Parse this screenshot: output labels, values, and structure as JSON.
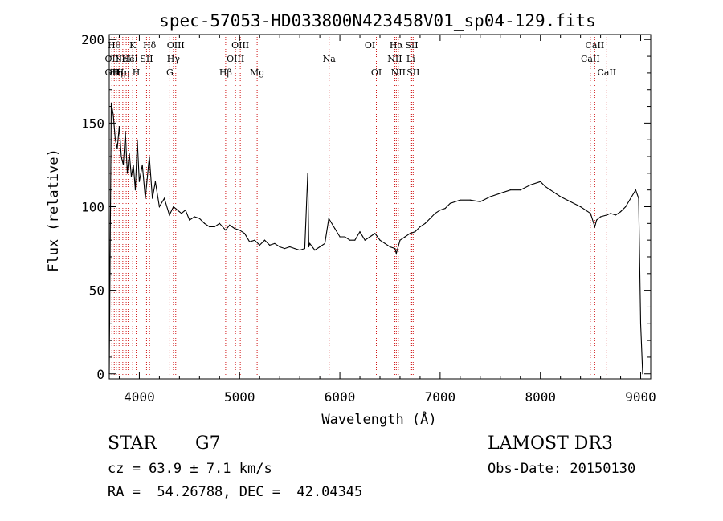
{
  "chart_data": {
    "type": "line",
    "title": "spec-57053-HD033800N423458V01_sp04-129.fits",
    "xlabel": "Wavelength (Å)",
    "ylabel": "Flux (relative)",
    "xlim": [
      3700,
      9100
    ],
    "ylim": [
      -3,
      203
    ],
    "x_ticks": [
      4000,
      5000,
      6000,
      7000,
      8000,
      9000
    ],
    "y_ticks": [
      0,
      50,
      100,
      150,
      200
    ],
    "grid": false,
    "series": [
      {
        "color": "#000000",
        "x": [
          3700,
          3720,
          3740,
          3760,
          3780,
          3800,
          3820,
          3840,
          3860,
          3880,
          3900,
          3920,
          3940,
          3960,
          3980,
          4000,
          4030,
          4060,
          4100,
          4130,
          4160,
          4200,
          4250,
          4300,
          4340,
          4380,
          4420,
          4460,
          4500,
          4550,
          4600,
          4650,
          4700,
          4750,
          4800,
          4861,
          4900,
          4950,
          5000,
          5050,
          5100,
          5150,
          5200,
          5250,
          5300,
          5350,
          5400,
          5450,
          5500,
          5550,
          5600,
          5650,
          5680,
          5690,
          5700,
          5750,
          5800,
          5850,
          5890,
          5950,
          6000,
          6050,
          6100,
          6150,
          6200,
          6250,
          6300,
          6350,
          6400,
          6450,
          6500,
          6550,
          6563,
          6600,
          6650,
          6700,
          6750,
          6800,
          6850,
          6900,
          6950,
          7000,
          7050,
          7100,
          7200,
          7300,
          7400,
          7500,
          7600,
          7700,
          7800,
          7900,
          8000,
          8050,
          8100,
          8200,
          8300,
          8400,
          8450,
          8500,
          8542,
          8560,
          8600,
          8662,
          8700,
          8750,
          8800,
          8850,
          8900,
          8950,
          8980,
          9000,
          9020
        ],
        "y": [
          0,
          162,
          155,
          140,
          135,
          148,
          130,
          125,
          145,
          120,
          132,
          118,
          125,
          110,
          140,
          115,
          125,
          105,
          130,
          105,
          115,
          100,
          105,
          95,
          100,
          98,
          96,
          98,
          92,
          94,
          93,
          90,
          88,
          88,
          90,
          86,
          89,
          87,
          86,
          84,
          79,
          80,
          77,
          80,
          77,
          78,
          76,
          75,
          76,
          75,
          74,
          75,
          120,
          76,
          78,
          74,
          76,
          78,
          93,
          87,
          82,
          82,
          80,
          80,
          85,
          80,
          82,
          84,
          80,
          78,
          76,
          75,
          72,
          80,
          82,
          84,
          85,
          88,
          90,
          93,
          96,
          98,
          99,
          102,
          104,
          104,
          103,
          106,
          108,
          110,
          110,
          113,
          115,
          112,
          110,
          106,
          103,
          100,
          98,
          96,
          88,
          92,
          94,
          95,
          96,
          95,
          97,
          100,
          105,
          110,
          105,
          30,
          0
        ]
      }
    ],
    "line_markers": [
      {
        "x": 3727,
        "label": "OII",
        "row": 1
      },
      {
        "x": 3727,
        "label": "OII",
        "row": 2
      },
      {
        "x": 3750,
        "label": "Hθ",
        "row": 0
      },
      {
        "x": 3771,
        "label": "Hη",
        "row": 2
      },
      {
        "x": 3798,
        "label": "Hη",
        "row": 2
      },
      {
        "x": 3835,
        "label": "Hη",
        "row": 2
      },
      {
        "x": 3869,
        "label": "NeIII",
        "row": 1
      },
      {
        "x": 3889,
        "label": "He",
        "row": 1
      },
      {
        "x": 3934,
        "label": "K",
        "row": 0
      },
      {
        "x": 3969,
        "label": "H",
        "row": 2
      },
      {
        "x": 4072,
        "label": "SII",
        "row": 1
      },
      {
        "x": 4102,
        "label": "Hδ",
        "row": 0
      },
      {
        "x": 4304,
        "label": "G",
        "row": 2
      },
      {
        "x": 4340,
        "label": "Hγ",
        "row": 1
      },
      {
        "x": 4363,
        "label": "OIII",
        "row": 0
      },
      {
        "x": 4861,
        "label": "Hβ",
        "row": 2
      },
      {
        "x": 4959,
        "label": "OIII",
        "row": 1
      },
      {
        "x": 5007,
        "label": "OIII",
        "row": 0
      },
      {
        "x": 5175,
        "label": "Mg",
        "row": 2
      },
      {
        "x": 5893,
        "label": "Na",
        "row": 1
      },
      {
        "x": 6300,
        "label": "OI",
        "row": 0
      },
      {
        "x": 6364,
        "label": "OI",
        "row": 2
      },
      {
        "x": 6548,
        "label": "NII",
        "row": 1
      },
      {
        "x": 6563,
        "label": "Hα",
        "row": 0
      },
      {
        "x": 6583,
        "label": "NII",
        "row": 2
      },
      {
        "x": 6707,
        "label": "Li",
        "row": 1
      },
      {
        "x": 6716,
        "label": "SII",
        "row": 0
      },
      {
        "x": 6731,
        "label": "SII",
        "row": 2
      },
      {
        "x": 8498,
        "label": "CaII",
        "row": 1
      },
      {
        "x": 8542,
        "label": "CaII",
        "row": 0
      },
      {
        "x": 8662,
        "label": "CaII",
        "row": 2
      }
    ]
  },
  "info": {
    "class": "STAR",
    "subclass": "G7",
    "cz": "cz = 63.9 ± 7.1 km/s",
    "radec": "RA =  54.26788, DEC =  42.04345",
    "survey": "LAMOST DR3",
    "obs_date": "Obs-Date: 20150130"
  }
}
